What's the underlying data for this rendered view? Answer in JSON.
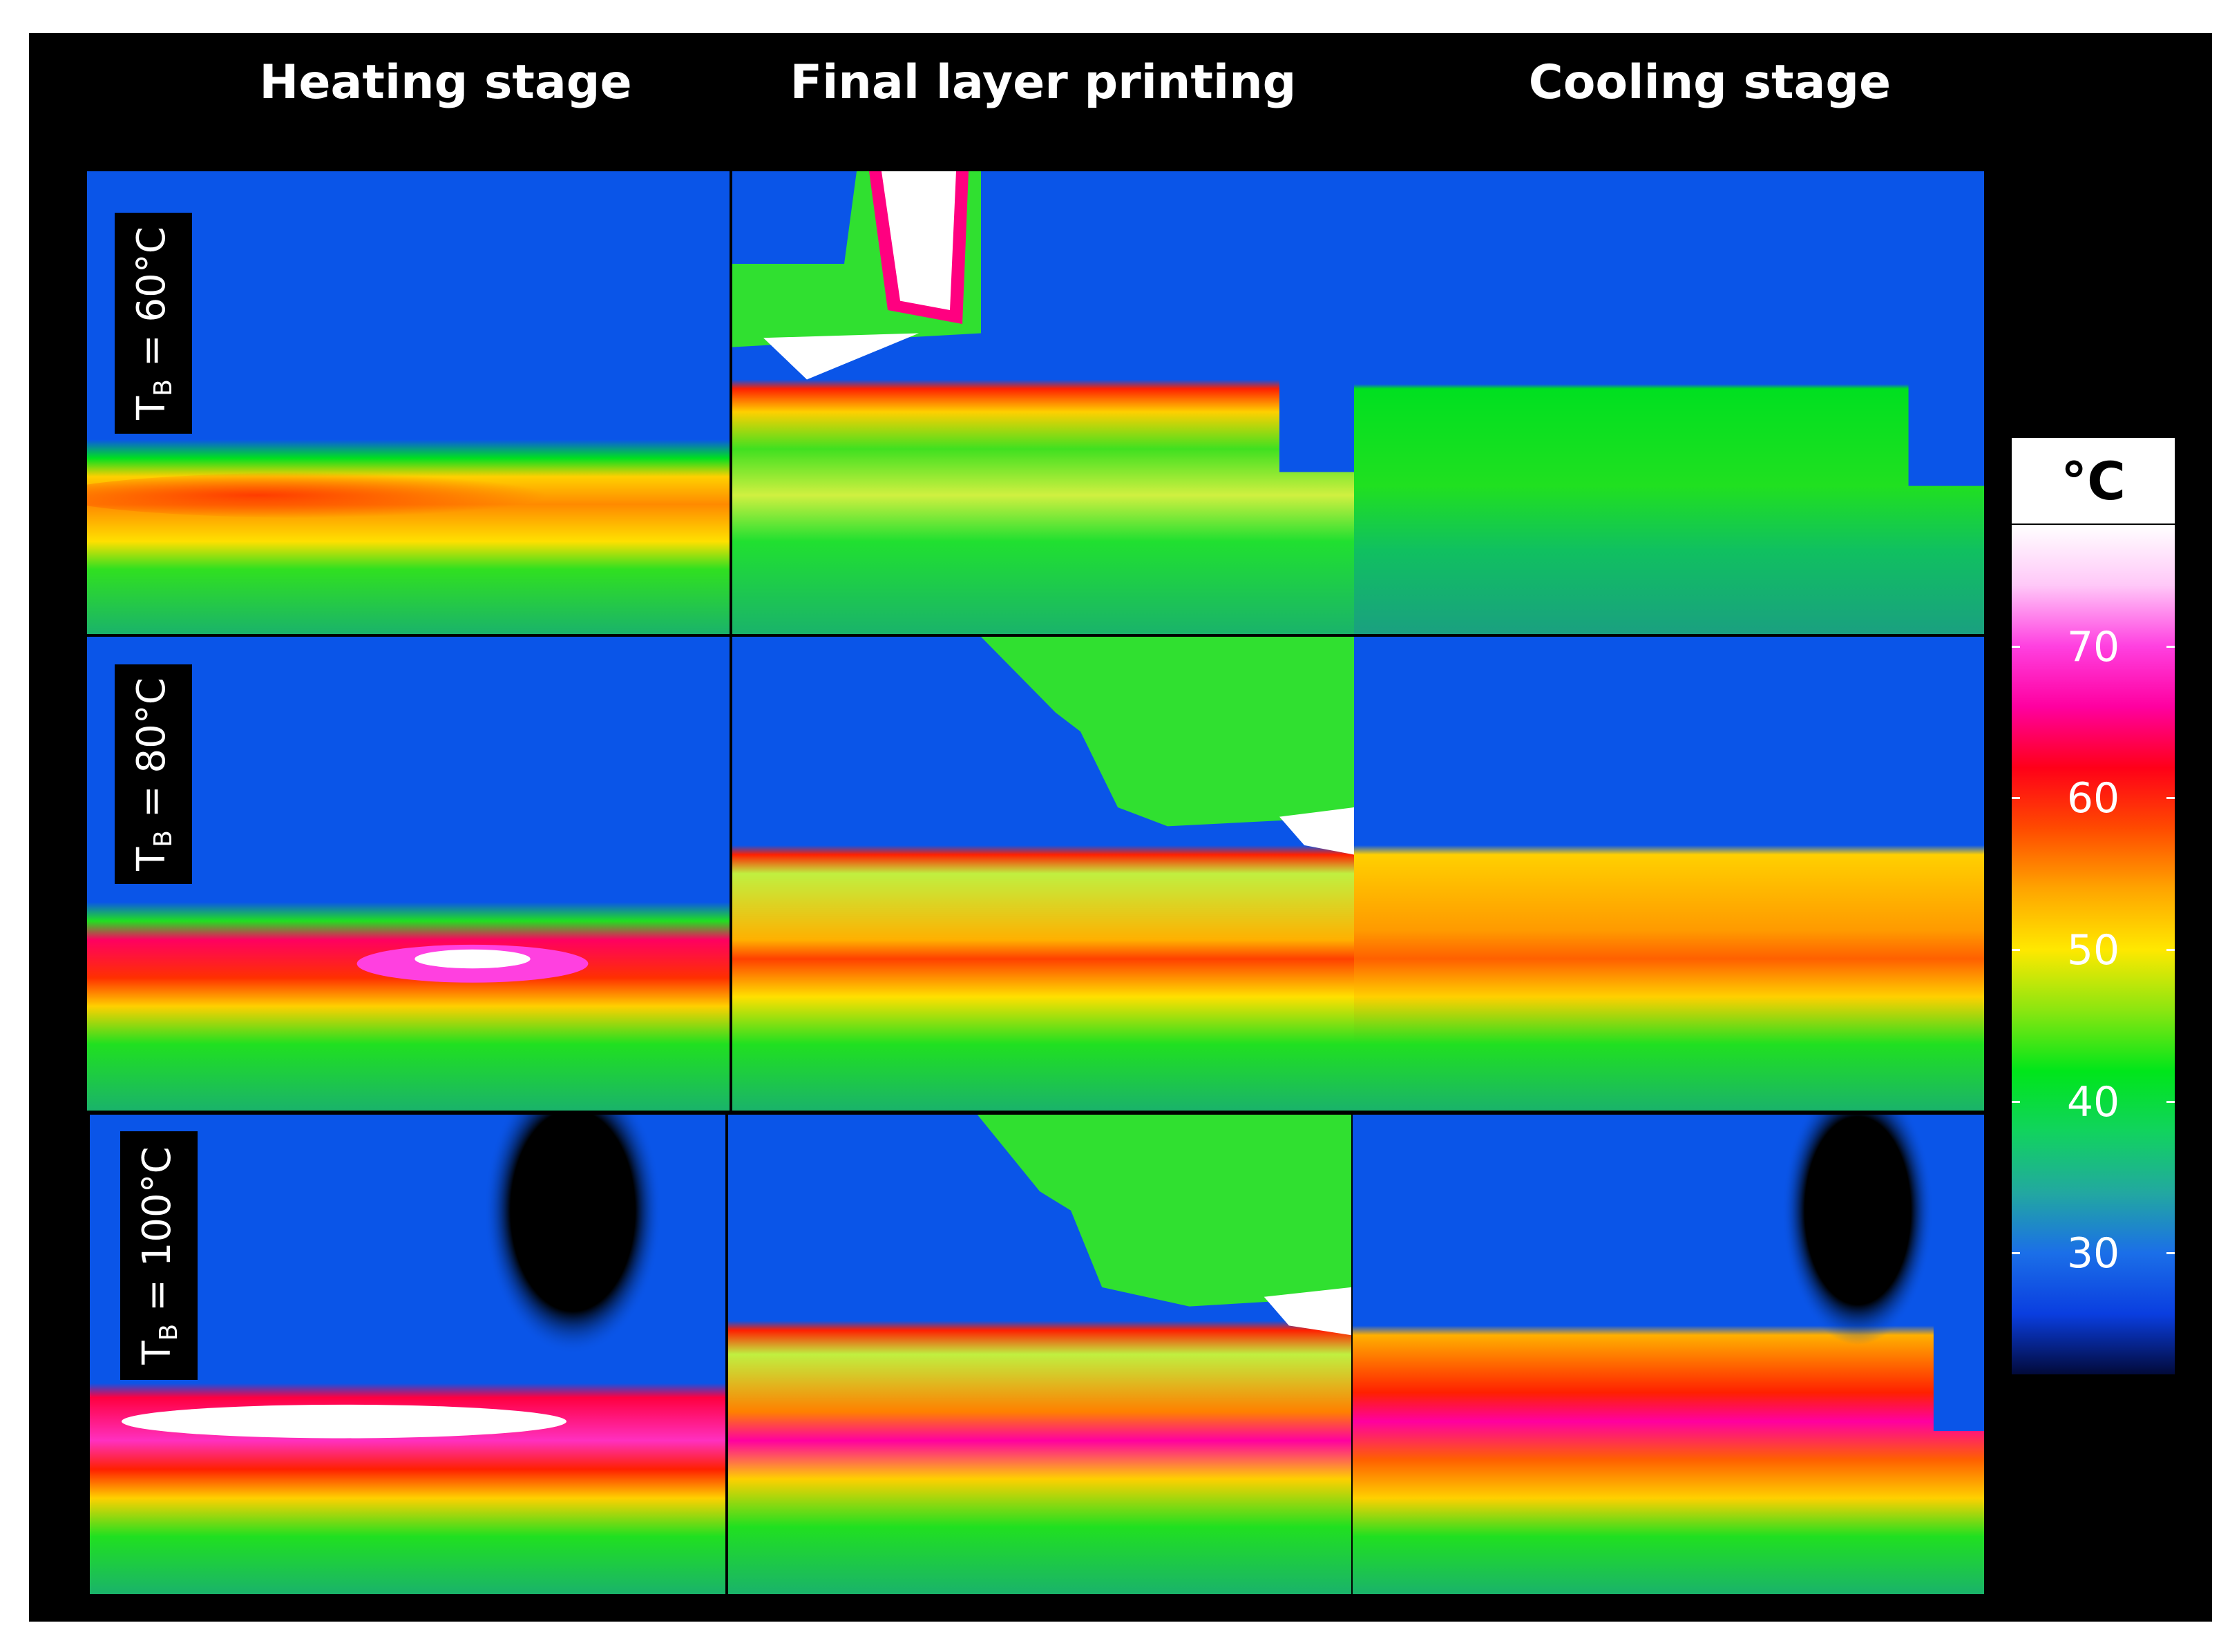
{
  "column_titles": [
    "Heating stage",
    "Final layer printing",
    "Cooling stage"
  ],
  "row_labels": [
    {
      "symbol": "T",
      "subscript": "B",
      "value": " = 60°C"
    },
    {
      "symbol": "T",
      "subscript": "B",
      "value": " = 80°C"
    },
    {
      "symbol": "T",
      "subscript": "B",
      "value": " = 100°C"
    }
  ],
  "colorbar": {
    "unit": "°C",
    "ticks": [
      "70",
      "60",
      "50",
      "40",
      "30"
    ],
    "tick_values": [
      70,
      60,
      50,
      40,
      30
    ],
    "range": [
      22,
      78
    ],
    "colors": [
      "#020a3a",
      "#0a3ee0",
      "#1b6fe8",
      "#22a8a0",
      "#11d35e",
      "#00e61a",
      "#8ce610",
      "#ffe800",
      "#ffa500",
      "#ff4a00",
      "#ff0018",
      "#ff00a0",
      "#ff40e0",
      "#ffc8f8",
      "#ffffff"
    ]
  }
}
